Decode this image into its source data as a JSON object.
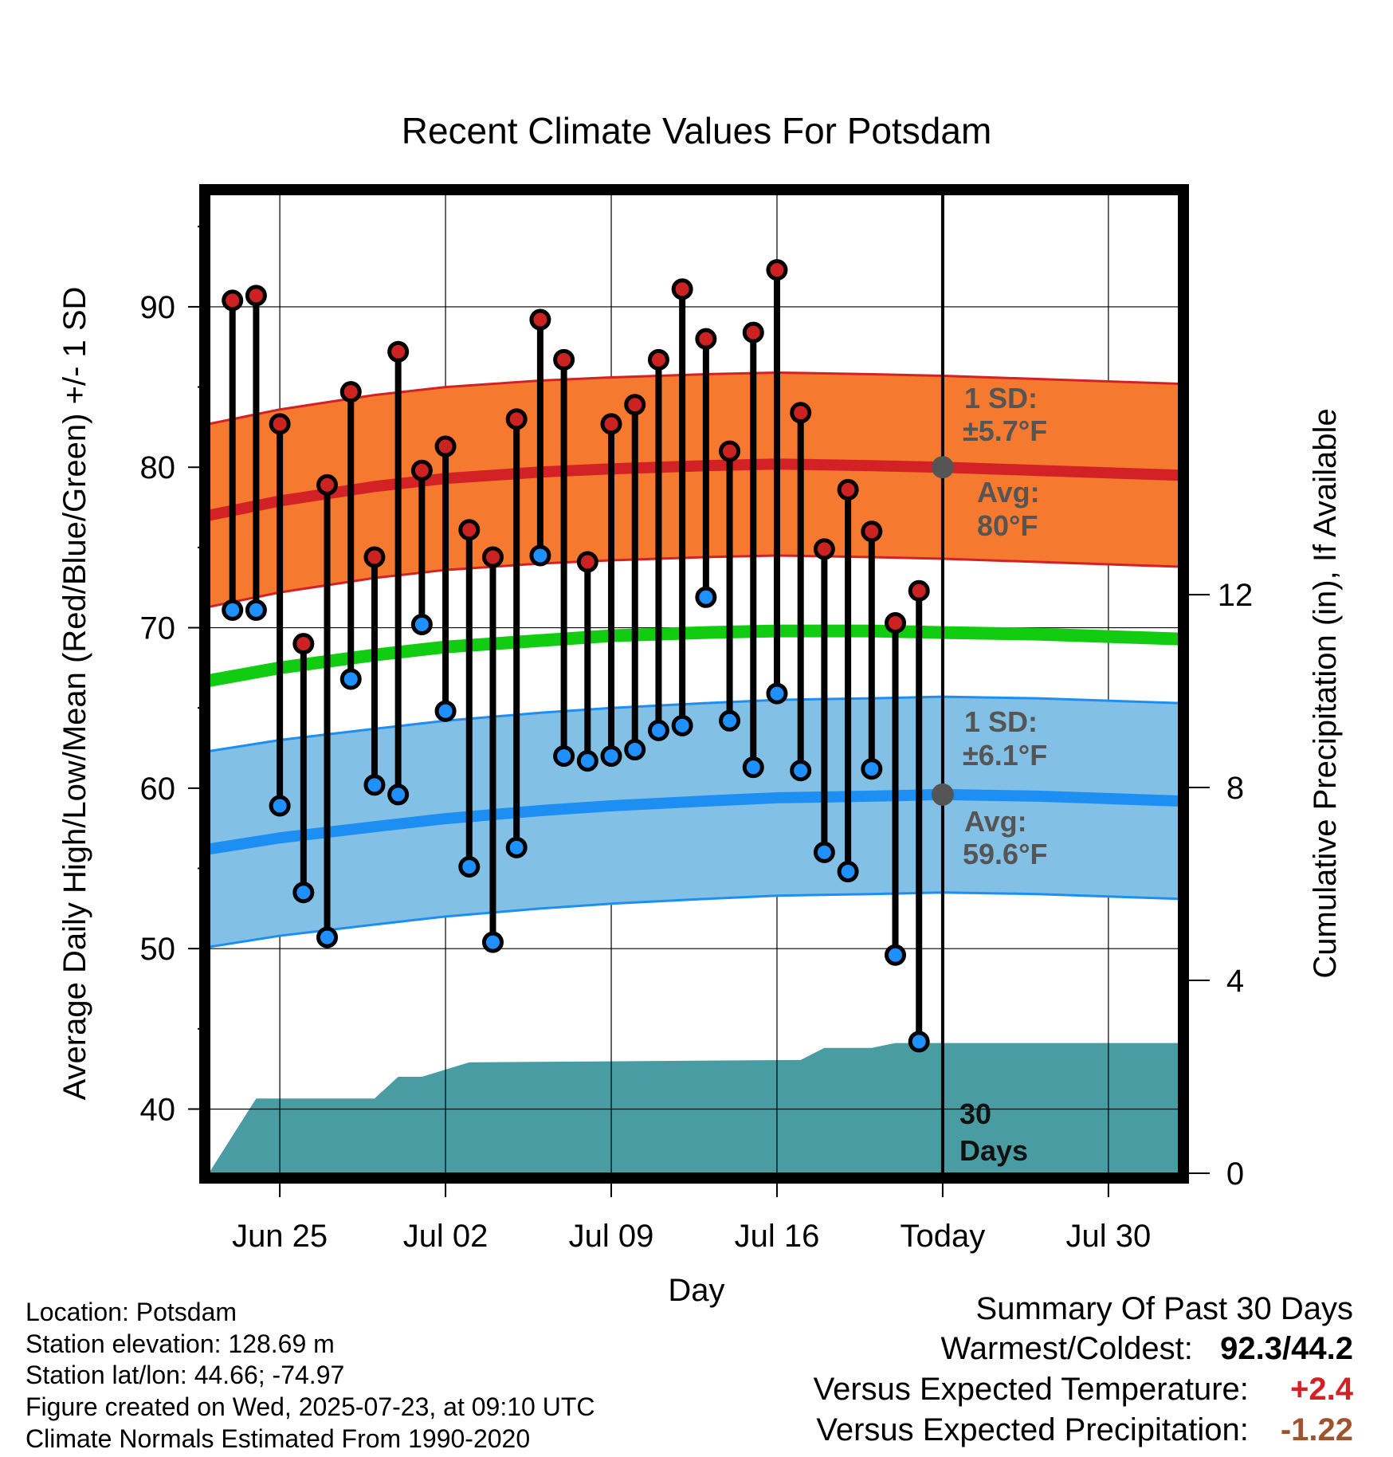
{
  "chart_data": {
    "type": "line",
    "title": "Recent Climate Values For Potsdam",
    "xlabel": "Day",
    "ylabel": "Average Daily High/Low/Mean (Red/Blue/Green) +/- 1 SD",
    "y2label": "Cumulative Precipitation (in), If Available",
    "ylim": [
      36,
      97
    ],
    "y2lim": [
      0,
      20.3
    ],
    "yticks": [
      40,
      50,
      60,
      70,
      80,
      90
    ],
    "y2ticks": [
      0,
      4,
      8,
      12
    ],
    "x_tick_labels": [
      "Jun 25",
      "Jul 02",
      "Jul 09",
      "Jul 16",
      "Today",
      "Jul 30"
    ],
    "x_tick_dates": [
      "2025-06-25",
      "2025-07-02",
      "2025-07-09",
      "2025-07-16",
      "2025-07-23",
      "2025-07-30"
    ],
    "xlim": [
      "2025-06-22",
      "2025-08-02"
    ],
    "today": "2025-07-23",
    "grid": true,
    "dates": [
      "2025-06-23",
      "2025-06-24",
      "2025-06-25",
      "2025-06-26",
      "2025-06-27",
      "2025-06-28",
      "2025-06-29",
      "2025-06-30",
      "2025-07-01",
      "2025-07-02",
      "2025-07-03",
      "2025-07-04",
      "2025-07-05",
      "2025-07-06",
      "2025-07-07",
      "2025-07-08",
      "2025-07-09",
      "2025-07-10",
      "2025-07-11",
      "2025-07-12",
      "2025-07-13",
      "2025-07-14",
      "2025-07-15",
      "2025-07-16",
      "2025-07-17",
      "2025-07-18",
      "2025-07-19",
      "2025-07-20",
      "2025-07-21",
      "2025-07-22"
    ],
    "daily_high": [
      90.4,
      90.7,
      82.7,
      69.0,
      78.9,
      84.7,
      74.4,
      87.2,
      79.8,
      81.3,
      76.1,
      74.4,
      83.0,
      89.2,
      86.7,
      74.1,
      82.7,
      83.9,
      86.7,
      91.1,
      88.0,
      81.0,
      88.4,
      92.3,
      83.4,
      74.9,
      78.6,
      76.0,
      70.3,
      72.3
    ],
    "daily_low": [
      71.1,
      71.1,
      58.9,
      53.5,
      50.7,
      66.8,
      60.2,
      59.6,
      70.2,
      64.8,
      55.1,
      50.4,
      56.3,
      74.5,
      62.0,
      61.7,
      62.0,
      62.4,
      63.6,
      63.9,
      71.9,
      64.2,
      61.3,
      65.9,
      61.1,
      56.0,
      54.8,
      61.2,
      49.6,
      44.2
    ],
    "normals_dates": [
      "2025-06-22",
      "2025-06-25",
      "2025-06-29",
      "2025-07-02",
      "2025-07-06",
      "2025-07-09",
      "2025-07-13",
      "2025-07-16",
      "2025-07-20",
      "2025-07-23",
      "2025-07-27",
      "2025-08-02"
    ],
    "avg_high": [
      77.0,
      77.9,
      78.8,
      79.3,
      79.7,
      79.9,
      80.1,
      80.2,
      80.1,
      80.0,
      79.8,
      79.5
    ],
    "avg_low": [
      56.2,
      56.9,
      57.6,
      58.1,
      58.6,
      58.9,
      59.2,
      59.4,
      59.5,
      59.6,
      59.5,
      59.2
    ],
    "avg_mean": [
      66.7,
      67.5,
      68.3,
      68.8,
      69.2,
      69.5,
      69.7,
      69.8,
      69.8,
      69.7,
      69.6,
      69.3
    ],
    "high_sd": 5.7,
    "low_sd": 6.1,
    "precip_dates": [
      "2025-06-22",
      "2025-06-24",
      "2025-06-27",
      "2025-06-29",
      "2025-06-30",
      "2025-07-01",
      "2025-07-03",
      "2025-07-17",
      "2025-07-18",
      "2025-07-20",
      "2025-07-21",
      "2025-08-02"
    ],
    "cum_precip": [
      0,
      1.55,
      1.55,
      1.55,
      2.0,
      2.0,
      2.3,
      2.35,
      2.6,
      2.6,
      2.7,
      2.7
    ],
    "annotations": {
      "high_sd_label": "1 SD:",
      "high_sd_value": "±5.7°F",
      "high_avg_label": "Avg:",
      "high_avg_value": "80°F",
      "low_sd_label": "1 SD:",
      "low_sd_value": "±6.1°F",
      "low_avg_label": "Avg:",
      "low_avg_value": "59.6°F",
      "days_line1": "30",
      "days_line2": "Days"
    },
    "colors": {
      "high_band": "#f57a30",
      "high_line": "#d32226",
      "low_band": "#83c0e6",
      "low_line": "#1e8ff2",
      "mean_line": "#11cc11",
      "precip": "#4a9ca3",
      "high_dot": "#cc2222",
      "low_dot": "#1e90ff",
      "annotation_text": "#555555"
    }
  },
  "footer": {
    "location": "Location: Potsdam",
    "elevation": "Station elevation: 128.69 m",
    "latlon": "Station lat/lon: 44.66; -74.97",
    "created": "Figure created on Wed, 2025-07-23, at 09:10 UTC",
    "normals": "Climate Normals Estimated From 1990-2020"
  },
  "summary": {
    "title": "Summary Of Past 30 Days",
    "warm_cold_label": "Warmest/Coldest:",
    "warm_cold_value": "92.3/44.2",
    "temp_label": "Versus Expected Temperature:",
    "temp_value": "+2.4",
    "temp_color": "#d32226",
    "precip_label": "Versus Expected Precipitation:",
    "precip_value": "-1.22",
    "precip_color": "#a0522d"
  }
}
